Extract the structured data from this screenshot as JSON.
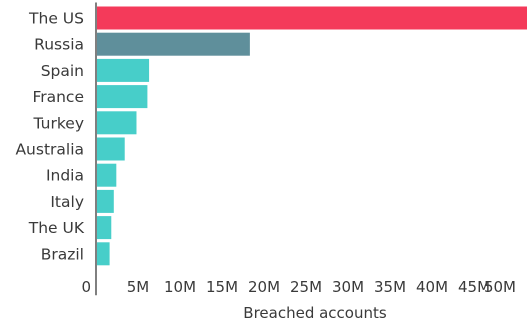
{
  "chart_data": {
    "type": "bar",
    "orientation": "horizontal",
    "categories": [
      "The US",
      "Russia",
      "Spain",
      "France",
      "Turkey",
      "Australia",
      "India",
      "Italy",
      "The UK",
      "Brazil"
    ],
    "values": [
      52000000,
      18200000,
      6200000,
      6000000,
      4700000,
      3300000,
      2300000,
      2000000,
      1700000,
      1500000
    ],
    "xlabel": "Breached accounts",
    "ylabel": "",
    "xlim": [
      0,
      50000000
    ],
    "x_ticks": [
      "0",
      "5M",
      "10M",
      "15M",
      "20M",
      "25M",
      "30M",
      "35M",
      "40M",
      "45M",
      "50M"
    ],
    "grid": false,
    "legend": "none",
    "colors": {
      "highlight": "#f43a5a",
      "second": "#5f8f9b",
      "default": "#47cec9",
      "axis": "#2b2b2b",
      "text": "#3a3a3a"
    }
  }
}
